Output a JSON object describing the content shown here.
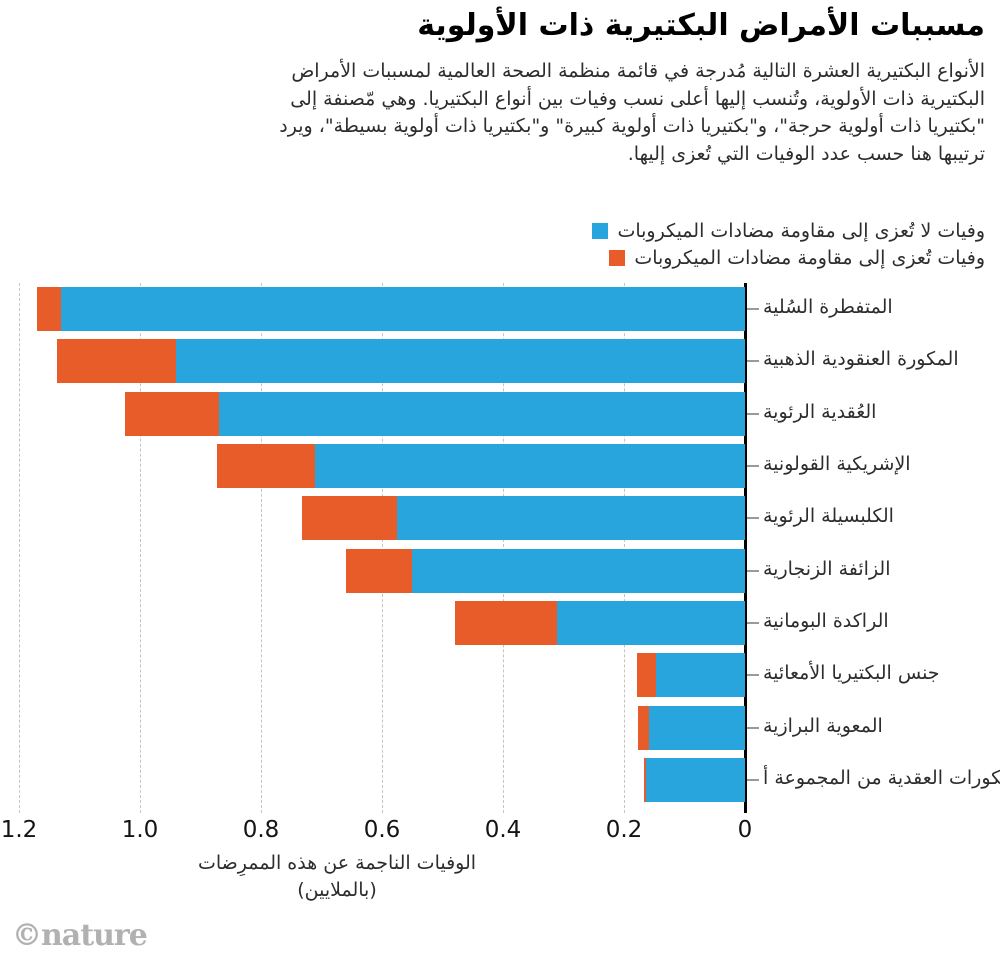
{
  "title": "مسببات الأمراض البكتيرية ذات الأولوية",
  "subtitle_lines": [
    "الأنواع البكتيرية العشرة التالية مُدرجة في قائمة منظمة الصحة العالمية لمسببات الأمراض",
    "البكتيرية ذات الأولوية، وتُنسب إليها أعلى نسب وفيات بين أنواع البكتيريا. وهي مّصنفة إلى",
    "\"بكتيريا ذات أولوية حرجة\"، و\"بكتيريا ذات أولوية كبيرة\" و\"بكتيريا ذات أولوية بسيطة\"، ويرد",
    "ترتيبها هنا حسب عدد الوفيات التي تُعزى إليها."
  ],
  "legend": {
    "items": [
      {
        "label": "وفيات لا تُعزى إلى مقاومة مضادات الميكروبات",
        "color": "#29A5DE"
      },
      {
        "label": "وفيات تُعزى إلى مقاومة مضادات الميكروبات",
        "color": "#E85C2A"
      }
    ]
  },
  "chart_data": {
    "type": "bar",
    "orientation": "horizontal-stacked-rtl",
    "title": "مسببات الأمراض البكتيرية ذات الأولوية",
    "categories": [
      "المتفطرة السُلية",
      "المكورة العنقودية الذهبية",
      "العُقدية الرئوية",
      "الإشريكية القولونية",
      "الكلبسيلة الرئوية",
      "الزائفة الزنجارية",
      "الراكدة البومانية",
      "جنس البكتيريا الأمعائية",
      "المعوية البرازية",
      "المكورات العقدية من المجموعة أ"
    ],
    "series": [
      {
        "name": "وفيات لا تُعزى إلى مقاومة مضادات الميكروبات",
        "color": "#29A5DE",
        "values": [
          1.13,
          0.94,
          0.87,
          0.71,
          0.575,
          0.55,
          0.31,
          0.147,
          0.159,
          0.163
        ]
      },
      {
        "name": "وفيات تُعزى إلى مقاومة مضادات الميكروبات",
        "color": "#E85C2A",
        "values": [
          0.04,
          0.197,
          0.155,
          0.162,
          0.157,
          0.109,
          0.17,
          0.031,
          0.018,
          0.004
        ]
      }
    ],
    "xticks": [
      {
        "label": "1.2",
        "value": 1.2
      },
      {
        "label": "1.0",
        "value": 1.0
      },
      {
        "label": "0.8",
        "value": 0.8
      },
      {
        "label": "0.6",
        "value": 0.6
      },
      {
        "label": "0.4",
        "value": 0.4
      },
      {
        "label": "0.2",
        "value": 0.2
      },
      {
        "label": "0",
        "value": 0.0
      }
    ],
    "xlim": [
      0,
      1.2
    ],
    "grid": "dashed-vertical",
    "xlabel_line1": "الوفيات الناجمة عن هذه الممرِضات",
    "xlabel_line2": "(بالملايين)",
    "legend_position": "top-right"
  },
  "footer": {
    "brand": "©nature"
  }
}
